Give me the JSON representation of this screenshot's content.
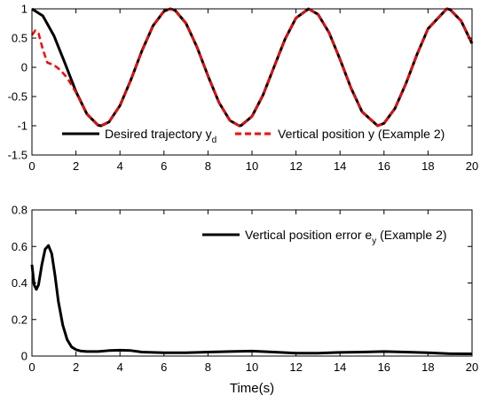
{
  "chart_data": [
    {
      "type": "line",
      "xlim": [
        0,
        20
      ],
      "ylim": [
        -1.5,
        1
      ],
      "xticks": [
        "0",
        "2",
        "4",
        "6",
        "8",
        "10",
        "12",
        "14",
        "16",
        "18",
        "20"
      ],
      "yticks": [
        "-1.5",
        "-1",
        "-0.5",
        "0",
        "0.5",
        "1"
      ],
      "grid": false,
      "legend_position": "bottom",
      "series": [
        {
          "name": "Desired trajectory y",
          "name_subscript": "d",
          "color": "#000000",
          "dash": "solid",
          "x": [
            0,
            0.5,
            1,
            1.5,
            2,
            2.5,
            3,
            3.14,
            3.5,
            4,
            4.5,
            5,
            5.5,
            6,
            6.28,
            6.5,
            7,
            7.5,
            8,
            8.5,
            9,
            9.42,
            9.5,
            10,
            10.5,
            11,
            11.5,
            12,
            12.57,
            13,
            13.5,
            14,
            14.5,
            15,
            15.71,
            16,
            16.5,
            17,
            17.5,
            18,
            18.85,
            19,
            19.5,
            20
          ],
          "y": [
            1,
            0.878,
            0.54,
            0.071,
            -0.416,
            -0.801,
            -0.99,
            -1,
            -0.936,
            -0.654,
            -0.211,
            0.284,
            0.709,
            0.96,
            1,
            0.977,
            0.754,
            0.347,
            -0.146,
            -0.602,
            -0.911,
            -1,
            -0.997,
            -0.839,
            -0.476,
            0.004,
            0.48,
            0.844,
            1,
            0.907,
            0.595,
            0.137,
            -0.354,
            -0.76,
            -1,
            -0.958,
            -0.702,
            -0.275,
            0.221,
            0.66,
            1,
            0.989,
            0.796,
            0.408
          ]
        },
        {
          "name": "Vertical position y (Example 2)",
          "color": "#ff0000",
          "dash": "dashed",
          "x": [
            0,
            0.15,
            0.3,
            0.5,
            0.7,
            1,
            1.3,
            1.6,
            2,
            2.5,
            3,
            3.14,
            3.5,
            4,
            4.5,
            5,
            5.5,
            6,
            6.28,
            6.5,
            7,
            7.5,
            8,
            8.5,
            9,
            9.42,
            9.5,
            10,
            10.5,
            11,
            11.5,
            12,
            12.57,
            13,
            13.5,
            14,
            14.5,
            15,
            15.71,
            16,
            16.5,
            17,
            17.5,
            18,
            18.85,
            19,
            19.5,
            20
          ],
          "y": [
            0.55,
            0.63,
            0.58,
            0.3,
            0.08,
            0.04,
            -0.05,
            -0.18,
            -0.43,
            -0.8,
            -0.99,
            -1,
            -0.936,
            -0.654,
            -0.211,
            0.284,
            0.709,
            0.96,
            1,
            0.977,
            0.754,
            0.347,
            -0.146,
            -0.602,
            -0.911,
            -1,
            -0.997,
            -0.839,
            -0.476,
            0.004,
            0.48,
            0.844,
            1,
            0.907,
            0.595,
            0.137,
            -0.354,
            -0.76,
            -1,
            -0.958,
            -0.702,
            -0.275,
            0.221,
            0.66,
            1,
            0.989,
            0.796,
            0.408
          ]
        }
      ]
    },
    {
      "type": "line",
      "xlim": [
        0,
        20
      ],
      "ylim": [
        0,
        0.8
      ],
      "xticks": [
        "0",
        "2",
        "4",
        "6",
        "8",
        "10",
        "12",
        "14",
        "16",
        "18",
        "20"
      ],
      "yticks": [
        "0",
        "0.2",
        "0.4",
        "0.6",
        "0.8"
      ],
      "xlabel": "Time(s)",
      "grid": false,
      "legend_position": "top-right",
      "series": [
        {
          "name": "Vertical position error e",
          "name_subscript": "y",
          "name_suffix": " (Example 2)",
          "color": "#000000",
          "dash": "solid",
          "x": [
            0,
            0.1,
            0.2,
            0.3,
            0.45,
            0.6,
            0.75,
            0.9,
            1.05,
            1.2,
            1.4,
            1.6,
            1.8,
            2,
            2.2,
            2.5,
            3,
            3.5,
            4,
            4.5,
            5,
            6,
            7,
            8,
            9,
            10,
            11,
            12,
            13,
            14,
            15,
            16,
            17,
            18,
            19,
            20
          ],
          "y": [
            0.5,
            0.39,
            0.365,
            0.39,
            0.5,
            0.585,
            0.605,
            0.56,
            0.44,
            0.3,
            0.17,
            0.09,
            0.05,
            0.035,
            0.028,
            0.025,
            0.025,
            0.03,
            0.032,
            0.03,
            0.022,
            0.018,
            0.018,
            0.022,
            0.025,
            0.027,
            0.022,
            0.016,
            0.016,
            0.02,
            0.022,
            0.025,
            0.022,
            0.018,
            0.013,
            0.012
          ]
        }
      ]
    }
  ]
}
